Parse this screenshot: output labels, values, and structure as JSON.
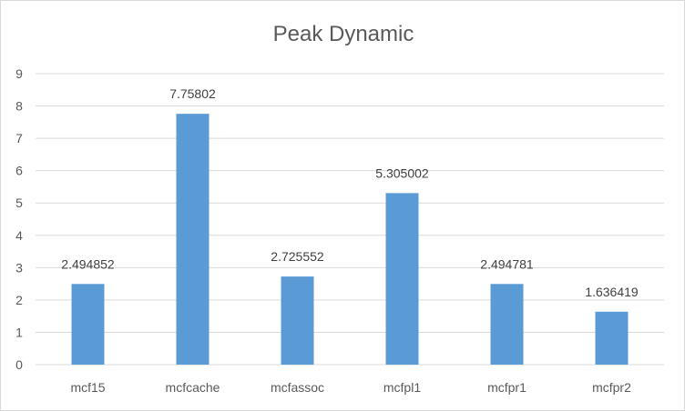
{
  "chart_data": {
    "type": "bar",
    "title": "Peak Dynamic",
    "categories": [
      "mcf15",
      "mcfcache",
      "mcfassoc",
      "mcfpl1",
      "mcfpr1",
      "mcfpr2"
    ],
    "values": [
      2.494852,
      7.75802,
      2.725552,
      5.305002,
      2.494781,
      1.636419
    ],
    "data_labels": [
      "2.494852",
      "7.75802",
      "2.725552",
      "5.305002",
      "2.494781",
      "1.636419"
    ],
    "xlabel": "",
    "ylabel": "",
    "ylim": [
      0,
      9
    ],
    "yticks": [
      "0",
      "1",
      "2",
      "3",
      "4",
      "5",
      "6",
      "7",
      "8",
      "9"
    ],
    "grid": true,
    "legend": "none",
    "bar_color": "#5b9bd5",
    "grid_color": "#d9d9d9"
  }
}
